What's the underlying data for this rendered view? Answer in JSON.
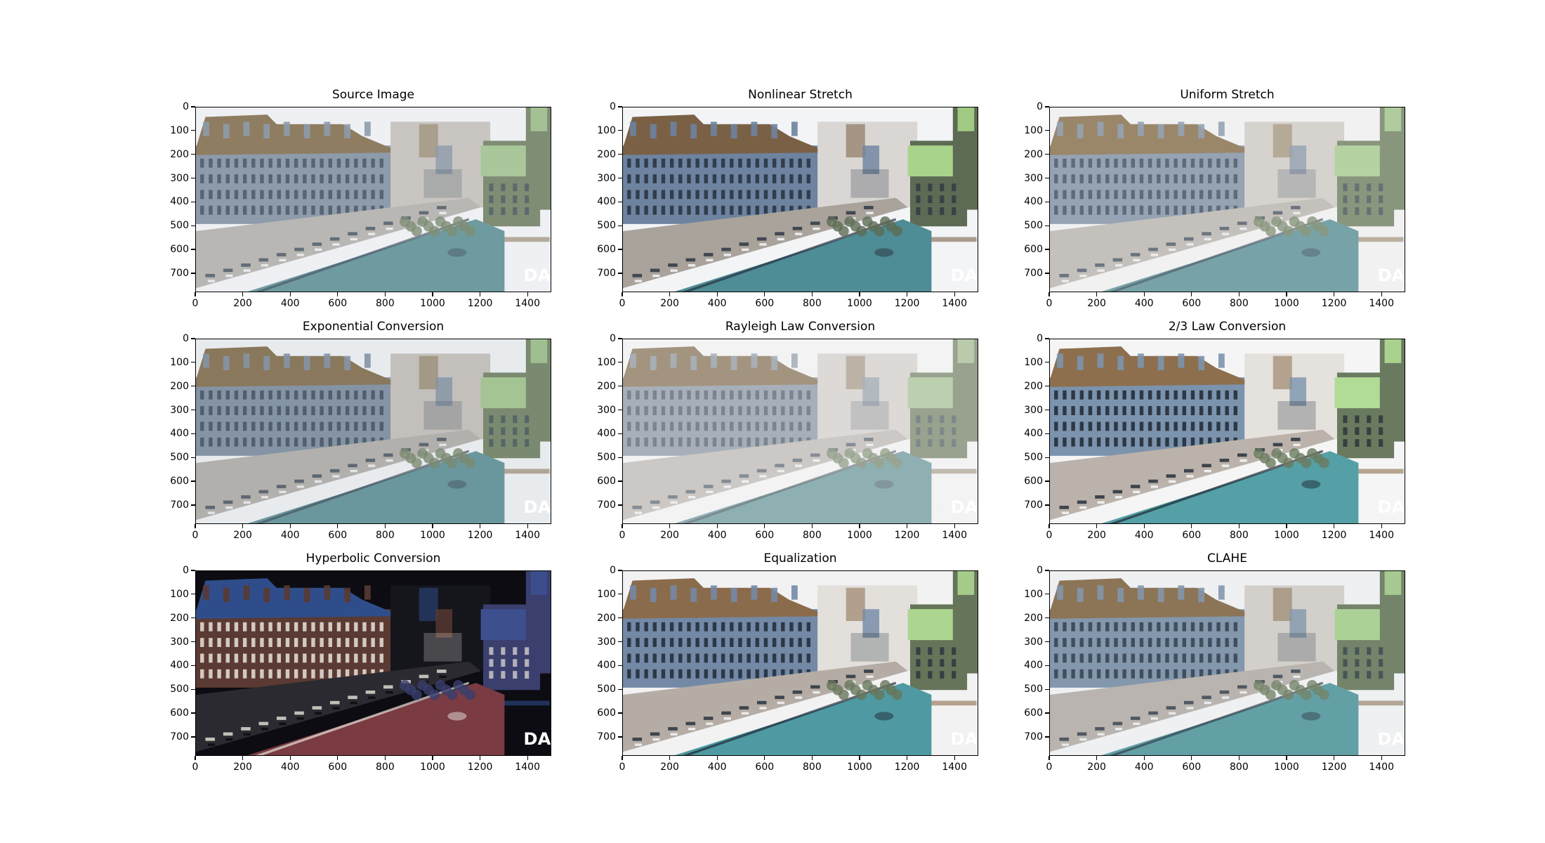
{
  "chart_data": [
    {
      "type": "image",
      "title": "Source Image",
      "xlim": [
        0,
        1500
      ],
      "ylim": [
        780,
        0
      ],
      "xticks": [
        0,
        200,
        400,
        600,
        800,
        1000,
        1200,
        1400
      ],
      "yticks": [
        0,
        100,
        200,
        300,
        400,
        500,
        600,
        700
      ],
      "filter": "source",
      "watermark": "DA"
    },
    {
      "type": "image",
      "title": "Nonlinear Stretch",
      "xlim": [
        0,
        1500
      ],
      "ylim": [
        780,
        0
      ],
      "xticks": [
        0,
        200,
        400,
        600,
        800,
        1000,
        1200,
        1400
      ],
      "yticks": [
        0,
        100,
        200,
        300,
        400,
        500,
        600,
        700
      ],
      "filter": "nonlinear",
      "watermark": "DA"
    },
    {
      "type": "image",
      "title": "Uniform Stretch",
      "xlim": [
        0,
        1500
      ],
      "ylim": [
        780,
        0
      ],
      "xticks": [
        0,
        200,
        400,
        600,
        800,
        1000,
        1200,
        1400
      ],
      "yticks": [
        0,
        100,
        200,
        300,
        400,
        500,
        600,
        700
      ],
      "filter": "uniform",
      "watermark": "DA"
    },
    {
      "type": "image",
      "title": "Exponential Conversion",
      "xlim": [
        0,
        1500
      ],
      "ylim": [
        780,
        0
      ],
      "xticks": [
        0,
        200,
        400,
        600,
        800,
        1000,
        1200,
        1400
      ],
      "yticks": [
        0,
        100,
        200,
        300,
        400,
        500,
        600,
        700
      ],
      "filter": "exponential",
      "watermark": "DA"
    },
    {
      "type": "image",
      "title": "Rayleigh Law Conversion",
      "xlim": [
        0,
        1500
      ],
      "ylim": [
        780,
        0
      ],
      "xticks": [
        0,
        200,
        400,
        600,
        800,
        1000,
        1200,
        1400
      ],
      "yticks": [
        0,
        100,
        200,
        300,
        400,
        500,
        600,
        700
      ],
      "filter": "rayleigh",
      "watermark": "DA"
    },
    {
      "type": "image",
      "title": "2/3 Law Conversion",
      "xlim": [
        0,
        1500
      ],
      "ylim": [
        780,
        0
      ],
      "xticks": [
        0,
        200,
        400,
        600,
        800,
        1000,
        1200,
        1400
      ],
      "yticks": [
        0,
        100,
        200,
        300,
        400,
        500,
        600,
        700
      ],
      "filter": "twothirds",
      "watermark": "DA"
    },
    {
      "type": "image",
      "title": "Hyperbolic Conversion",
      "xlim": [
        0,
        1500
      ],
      "ylim": [
        780,
        0
      ],
      "xticks": [
        0,
        200,
        400,
        600,
        800,
        1000,
        1200,
        1400
      ],
      "yticks": [
        0,
        100,
        200,
        300,
        400,
        500,
        600,
        700
      ],
      "filter": "hyperbolic",
      "watermark": "DA"
    },
    {
      "type": "image",
      "title": "Equalization",
      "xlim": [
        0,
        1500
      ],
      "ylim": [
        780,
        0
      ],
      "xticks": [
        0,
        200,
        400,
        600,
        800,
        1000,
        1200,
        1400
      ],
      "yticks": [
        0,
        100,
        200,
        300,
        400,
        500,
        600,
        700
      ],
      "filter": "equalization",
      "watermark": "DA"
    },
    {
      "type": "image",
      "title": "CLAHE",
      "xlim": [
        0,
        1500
      ],
      "ylim": [
        780,
        0
      ],
      "xticks": [
        0,
        200,
        400,
        600,
        800,
        1000,
        1200,
        1400
      ],
      "yticks": [
        0,
        100,
        200,
        300,
        400,
        500,
        600,
        700
      ],
      "filter": "clahe",
      "watermark": "DA"
    }
  ],
  "palettes": {
    "source": {
      "sky": "#eef0f3",
      "building": "#8d9bab",
      "roof": "#8f7d62",
      "road": "#b9b7b4",
      "park": "#6e9aa0",
      "tower": "#7e8d74",
      "green_roof": "#a9c79a",
      "windows": "#4d5a68",
      "right_bg": "#c9c5c1"
    },
    "nonlinear": {
      "sky": "#f3f4f6",
      "building": "#6d83a0",
      "roof": "#7a6146",
      "road": "#a9a39c",
      "park": "#4e8c96",
      "tower": "#5d6b54",
      "green_roof": "#a7d48a",
      "windows": "#27313e",
      "right_bg": "#d9d6d3"
    },
    "uniform": {
      "sky": "#f1f1f2",
      "building": "#95a3b3",
      "roof": "#9a8669",
      "road": "#c4c0bc",
      "park": "#77a3a8",
      "tower": "#88967d",
      "green_roof": "#b5d2a2",
      "windows": "#56626f",
      "right_bg": "#d6d2ce"
    },
    "exponential": {
      "sky": "#e8ebee",
      "building": "#8594a5",
      "roof": "#8a785d",
      "road": "#b2b0ad",
      "park": "#6a979d",
      "tower": "#7a8a70",
      "green_roof": "#a4c494",
      "windows": "#485563",
      "right_bg": "#c3bfbb"
    },
    "rayleigh": {
      "sky": "#f3f3f4",
      "building": "#a7b0ba",
      "roof": "#a3947f",
      "road": "#cbc8c5",
      "park": "#8fb0b2",
      "tower": "#98a28f",
      "green_roof": "#bccfae",
      "windows": "#747d86",
      "right_bg": "#dcd9d6"
    },
    "twothirds": {
      "sky": "#f5f5f6",
      "building": "#7c93ad",
      "roof": "#8d6f4e",
      "road": "#bbb3ab",
      "park": "#55a0a6",
      "tower": "#6a7a5f",
      "green_roof": "#b0dc95",
      "windows": "#1f2833",
      "right_bg": "#e5e1dd"
    },
    "hyperbolic": {
      "sky": "#0c0c12",
      "building": "#5a3a32",
      "roof": "#2f4d8a",
      "road": "#2a2a30",
      "park": "#7a3b42",
      "tower": "#3a3f6e",
      "green_roof": "#3d4f8f",
      "windows": "#e8e3dc",
      "right_bg": "#15151c"
    },
    "equalization": {
      "sky": "#f2f2f3",
      "building": "#7389a6",
      "roof": "#8a6b4b",
      "road": "#b5ada5",
      "park": "#4f9aa2",
      "tower": "#66755a",
      "green_roof": "#acd690",
      "windows": "#202a37",
      "right_bg": "#e3e0dc"
    },
    "clahe": {
      "sky": "#eef0f2",
      "building": "#8397ad",
      "roof": "#8c7556",
      "road": "#b9b4af",
      "park": "#62a0a6",
      "tower": "#74846a",
      "green_roof": "#acd196",
      "windows": "#36414f",
      "right_bg": "#d3cfcb"
    }
  }
}
